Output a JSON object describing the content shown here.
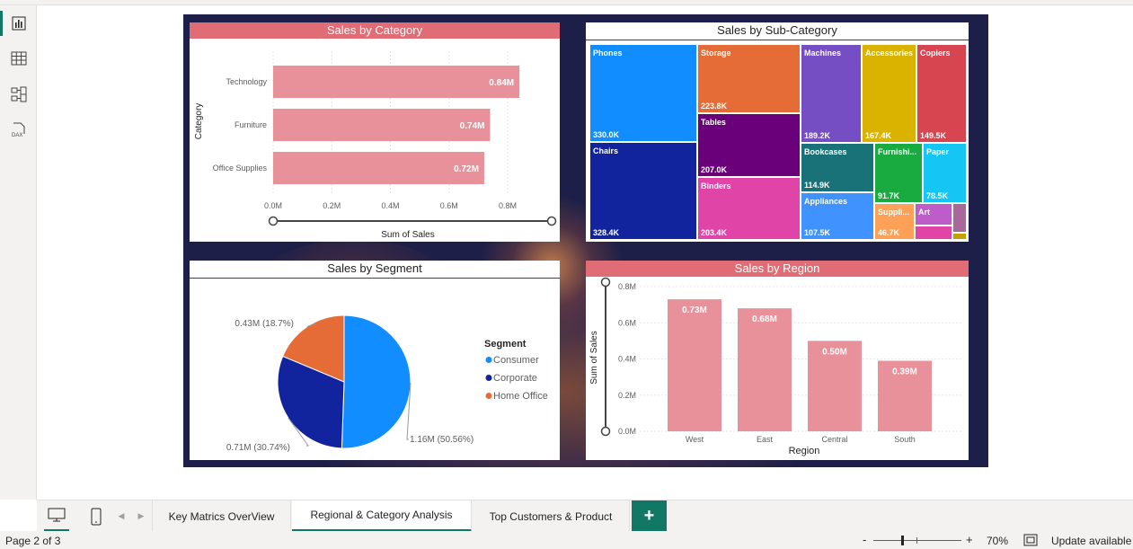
{
  "sidebar": {
    "items": [
      {
        "name": "report-view",
        "icon": "bar-chart-icon",
        "active": true
      },
      {
        "name": "table-view",
        "icon": "table-grid-icon",
        "active": false
      },
      {
        "name": "model-view",
        "icon": "model-diagram-icon",
        "active": false
      },
      {
        "name": "dax-query-view",
        "icon": "dax-icon",
        "active": false,
        "label": "DAX"
      }
    ]
  },
  "visuals": {
    "category": {
      "title": "Sales by Category",
      "chart_data": {
        "type": "bar",
        "orientation": "horizontal",
        "categories": [
          "Technology",
          "Furniture",
          "Office Supplies"
        ],
        "values": [
          0.84,
          0.74,
          0.72
        ],
        "value_labels": [
          "0.84M",
          "0.74M",
          "0.72M"
        ],
        "xlabel": "Sum of Sales",
        "ylabel": "Category",
        "xticks": [
          "0.0M",
          "0.2M",
          "0.4M",
          "0.6M",
          "0.8M"
        ],
        "xlim": [
          0,
          0.95
        ],
        "color": "#e8919a"
      }
    },
    "subcategory": {
      "title": "Sales by Sub-Category",
      "chart_data": {
        "type": "treemap",
        "items": [
          {
            "name": "Phones",
            "value": "330.0K",
            "color": "#118dff"
          },
          {
            "name": "Chairs",
            "value": "328.4K",
            "color": "#12239e"
          },
          {
            "name": "Storage",
            "value": "223.8K",
            "color": "#e66c37"
          },
          {
            "name": "Tables",
            "value": "207.0K",
            "color": "#6b007b"
          },
          {
            "name": "Binders",
            "value": "203.4K",
            "color": "#e044a7"
          },
          {
            "name": "Machines",
            "value": "189.2K",
            "color": "#744ec2"
          },
          {
            "name": "Accessories",
            "value": "167.4K",
            "color": "#d9b300"
          },
          {
            "name": "Copiers",
            "value": "149.5K",
            "color": "#d64550"
          },
          {
            "name": "Bookcases",
            "value": "114.9K",
            "color": "#197278"
          },
          {
            "name": "Furnishi...",
            "value": "91.7K",
            "color": "#1aab40"
          },
          {
            "name": "Paper",
            "value": "78.5K",
            "color": "#15c6f4"
          },
          {
            "name": "Appliances",
            "value": "107.5K",
            "color": "#4092ff"
          },
          {
            "name": "Suppli...",
            "value": "46.7K",
            "color": "#ffa058"
          },
          {
            "name": "Art",
            "value": "",
            "color": "#be5dc9"
          }
        ]
      }
    },
    "segment": {
      "title": "Sales by Segment",
      "chart_data": {
        "type": "pie",
        "legend_title": "Segment",
        "legend_placement": "right",
        "slices": [
          {
            "name": "Consumer",
            "value": 1.16,
            "label": "1.16M (50.56%)",
            "percent": 50.56,
            "color": "#118dff"
          },
          {
            "name": "Corporate",
            "value": 0.71,
            "label": "0.71M (30.74%)",
            "percent": 30.74,
            "color": "#12239e"
          },
          {
            "name": "Home Office",
            "value": 0.43,
            "label": "0.43M (18.7%)",
            "percent": 18.7,
            "color": "#e66c37"
          }
        ]
      }
    },
    "region": {
      "title": "Sales by Region",
      "chart_data": {
        "type": "bar",
        "orientation": "vertical",
        "categories": [
          "West",
          "East",
          "Central",
          "South"
        ],
        "values": [
          0.73,
          0.68,
          0.5,
          0.39
        ],
        "value_labels": [
          "0.73M",
          "0.68M",
          "0.50M",
          "0.39M"
        ],
        "xlabel": "Region",
        "ylabel": "Sum of Sales",
        "yticks": [
          "0.0M",
          "0.2M",
          "0.4M",
          "0.6M",
          "0.8M"
        ],
        "ylim": [
          0,
          0.8
        ],
        "color": "#e8919a"
      }
    }
  },
  "bottom": {
    "tabs": [
      {
        "label": "Key Matrics OverView",
        "active": false
      },
      {
        "label": "Regional & Category Analysis",
        "active": true
      },
      {
        "label": "Top Customers & Product",
        "active": false
      }
    ],
    "add_label": "+"
  },
  "status": {
    "page": "Page 2 of 3",
    "zoom_minus": "-",
    "zoom_plus": "+",
    "zoom": "70%",
    "update": "Update available",
    "zoom_level_percent": 70
  },
  "colors": {
    "accent": "#117865",
    "title_pink": "#e06c75",
    "bar_pink": "#e8919a"
  }
}
